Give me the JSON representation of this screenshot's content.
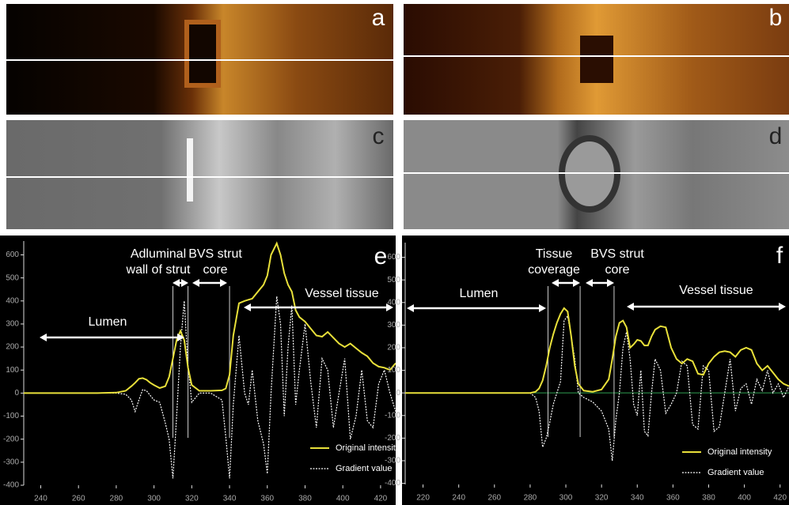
{
  "panels": [
    {
      "label": "a"
    },
    {
      "label": "b"
    },
    {
      "label": "c"
    },
    {
      "label": "d"
    }
  ],
  "chart_data": [
    {
      "type": "line",
      "label": "e",
      "x": [
        231,
        240,
        250,
        260,
        270,
        280,
        285,
        288,
        290,
        292,
        294,
        296,
        298,
        300,
        303,
        306,
        308,
        310,
        312,
        314,
        316,
        318,
        320,
        324,
        330,
        336,
        338,
        340,
        342,
        345,
        348,
        350,
        352,
        355,
        358,
        360,
        362,
        365,
        367,
        369,
        371,
        373,
        375,
        377,
        380,
        383,
        386,
        389,
        392,
        395,
        398,
        401,
        404,
        407,
        410,
        413,
        416,
        419,
        422,
        425,
        428
      ],
      "series": [
        {
          "name": "Original intensity",
          "color": "#e8e03a",
          "values": [
            0,
            0,
            0,
            0,
            0,
            2,
            10,
            30,
            45,
            62,
            65,
            58,
            45,
            35,
            22,
            30,
            70,
            150,
            230,
            270,
            230,
            110,
            35,
            10,
            10,
            12,
            20,
            80,
            250,
            390,
            400,
            405,
            410,
            440,
            470,
            510,
            600,
            650,
            600,
            520,
            470,
            440,
            360,
            330,
            310,
            280,
            250,
            245,
            265,
            240,
            215,
            200,
            215,
            195,
            175,
            160,
            130,
            115,
            110,
            100,
            130
          ]
        },
        {
          "name": "Gradient value",
          "color": "#ffffff",
          "dashed": true,
          "values": [
            0,
            0,
            0,
            0,
            0,
            0,
            -5,
            -30,
            -80,
            -30,
            15,
            10,
            -10,
            -30,
            -40,
            -130,
            -200,
            -370,
            -100,
            200,
            400,
            120,
            -40,
            0,
            0,
            -30,
            -190,
            -370,
            -50,
            250,
            0,
            -50,
            100,
            -120,
            -220,
            -350,
            0,
            420,
            300,
            -100,
            200,
            380,
            -50,
            100,
            300,
            50,
            -150,
            150,
            100,
            -150,
            0,
            150,
            -200,
            -100,
            100,
            -120,
            -150,
            40,
            100,
            0,
            -80
          ]
        }
      ],
      "xlim": [
        231,
        428
      ],
      "ylim": [
        -400,
        660
      ],
      "xticks": [
        240,
        260,
        280,
        300,
        320,
        340,
        360,
        380,
        400,
        420
      ],
      "yticks": [
        -400,
        -300,
        -200,
        -100,
        0,
        100,
        200,
        300,
        400,
        500,
        600
      ],
      "boundaries": [
        310,
        318,
        340
      ],
      "annotations": [
        {
          "text": [
            "Lumen"
          ]
        },
        {
          "text": [
            "Adluminal",
            "wall of strut"
          ]
        },
        {
          "text": [
            "BVS strut",
            "core"
          ]
        },
        {
          "text": [
            "Vessel tissue"
          ]
        }
      ]
    },
    {
      "type": "line",
      "label": "f",
      "x": [
        210,
        220,
        240,
        260,
        280,
        283,
        285,
        287,
        289,
        291,
        293,
        295,
        297,
        299,
        301,
        303,
        305,
        307,
        310,
        315,
        320,
        324,
        326,
        328,
        330,
        332,
        334,
        336,
        338,
        340,
        342,
        344,
        346,
        348,
        350,
        353,
        356,
        359,
        362,
        365,
        368,
        371,
        374,
        377,
        380,
        383,
        386,
        389,
        392,
        395,
        398,
        401,
        404,
        407,
        410,
        413,
        416,
        419,
        422,
        425
      ],
      "series": [
        {
          "name": "Original intensity",
          "color": "#e8e03a",
          "values": [
            0,
            0,
            0,
            0,
            0,
            5,
            20,
            55,
            120,
            200,
            260,
            310,
            350,
            375,
            360,
            250,
            120,
            40,
            10,
            5,
            15,
            60,
            150,
            250,
            310,
            320,
            290,
            200,
            215,
            235,
            230,
            210,
            210,
            250,
            280,
            295,
            290,
            200,
            150,
            130,
            150,
            140,
            85,
            80,
            130,
            160,
            180,
            185,
            180,
            160,
            190,
            200,
            190,
            130,
            100,
            120,
            90,
            60,
            40,
            30
          ]
        },
        {
          "name": "Gradient value",
          "color": "#ffffff",
          "dashed": true,
          "values": [
            0,
            0,
            0,
            0,
            0,
            -20,
            -80,
            -240,
            -200,
            -130,
            -50,
            0,
            50,
            320,
            340,
            250,
            150,
            0,
            -20,
            -40,
            -80,
            -160,
            -300,
            -120,
            0,
            200,
            270,
            150,
            -50,
            -100,
            100,
            -170,
            -190,
            0,
            150,
            100,
            -90,
            -50,
            0,
            140,
            120,
            -140,
            -160,
            120,
            100,
            -170,
            -150,
            0,
            150,
            -80,
            20,
            40,
            -50,
            60,
            10,
            100,
            0,
            40,
            -20,
            30
          ]
        }
      ],
      "xlim": [
        210,
        425
      ],
      "ylim": [
        -405,
        665
      ],
      "xticks": [
        220,
        240,
        260,
        280,
        300,
        320,
        340,
        360,
        380,
        400,
        420
      ],
      "yticks": [
        -400,
        -300,
        -200,
        -100,
        0,
        100,
        200,
        300,
        400,
        500,
        600
      ],
      "zero_line_color": "#2f9e4f",
      "boundaries": [
        290,
        308,
        327
      ],
      "annotations": [
        {
          "text": [
            "Lumen"
          ]
        },
        {
          "text": [
            "Tissue",
            "coverage"
          ]
        },
        {
          "text": [
            "BVS strut",
            "core"
          ]
        },
        {
          "text": [
            "Vessel tissue"
          ]
        }
      ]
    }
  ]
}
